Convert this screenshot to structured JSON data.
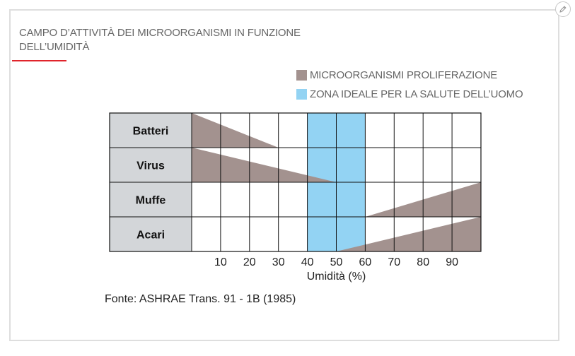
{
  "title": "CAMPO D’ATTIVITÀ DEI MICROORGANISMI IN FUNZIONE DELL’UMIDITÀ",
  "source": "Fonte: ASHRAE Trans. 91 - 1B (1985)",
  "edit_icon": "pencil-icon",
  "colors": {
    "proliferation": "#a3928f",
    "ideal_zone": "#93d3f3",
    "row_header_bg": "#d3d6d9",
    "accent": "#e0242b"
  },
  "chart_data": {
    "type": "area",
    "xlabel": "Umidità (%)",
    "xlim": [
      0,
      100
    ],
    "xticks": [
      10,
      20,
      30,
      40,
      50,
      60,
      70,
      80,
      90
    ],
    "grid": true,
    "legend": [
      {
        "label": "MICROORGANISMI PROLIFERAZIONE",
        "color": "#a3928f"
      },
      {
        "label": "ZONA IDEALE PER LA SALUTE DELL’UOMO",
        "color": "#93d3f3"
      }
    ],
    "ideal_zone": [
      40,
      60
    ],
    "rows": [
      {
        "label": "Batteri",
        "proliferation": {
          "x": [
            0,
            30
          ],
          "level": [
            1,
            0
          ]
        }
      },
      {
        "label": "Virus",
        "proliferation": {
          "x": [
            0,
            50
          ],
          "level": [
            1,
            0
          ]
        }
      },
      {
        "label": "Muffe",
        "proliferation": {
          "x": [
            60,
            100
          ],
          "level": [
            0,
            1
          ]
        }
      },
      {
        "label": "Acari",
        "proliferation": {
          "x": [
            50,
            100
          ],
          "level": [
            0,
            1
          ]
        }
      }
    ]
  }
}
